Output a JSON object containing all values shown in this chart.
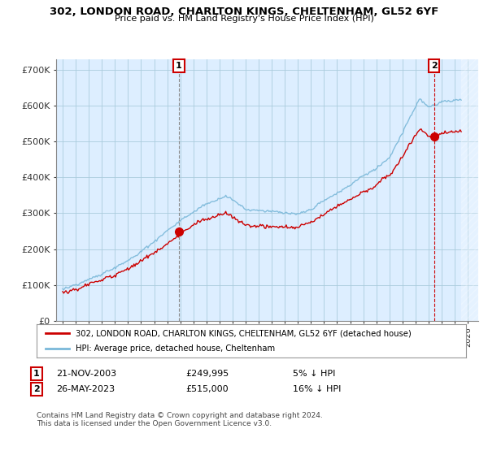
{
  "title": "302, LONDON ROAD, CHARLTON KINGS, CHELTENHAM, GL52 6YF",
  "subtitle": "Price paid vs. HM Land Registry's House Price Index (HPI)",
  "ylabel_ticks": [
    "£0",
    "£100K",
    "£200K",
    "£300K",
    "£400K",
    "£500K",
    "£600K",
    "£700K"
  ],
  "ytick_values": [
    0,
    100000,
    200000,
    300000,
    400000,
    500000,
    600000,
    700000
  ],
  "ylim": [
    0,
    730000
  ],
  "xlim_start": 1994.5,
  "xlim_end": 2026.8,
  "legend_line1": "302, LONDON ROAD, CHARLTON KINGS, CHELTENHAM, GL52 6YF (detached house)",
  "legend_line2": "HPI: Average price, detached house, Cheltenham",
  "sale1_label": "1",
  "sale1_date": "21-NOV-2003",
  "sale1_price": "£249,995",
  "sale1_pct": "5% ↓ HPI",
  "sale2_label": "2",
  "sale2_date": "26-MAY-2023",
  "sale2_price": "£515,000",
  "sale2_pct": "16% ↓ HPI",
  "footer": "Contains HM Land Registry data © Crown copyright and database right 2024.\nThis data is licensed under the Open Government Licence v3.0.",
  "hpi_color": "#7ab8d9",
  "price_color": "#cc0000",
  "sale1_x": 2003.9,
  "sale1_y": 249995,
  "sale2_x": 2023.42,
  "sale2_y": 515000,
  "plot_bg_color": "#ddeeff",
  "background_color": "#ffffff",
  "grid_color": "#aaccdd",
  "hatch_start": 2025.5
}
